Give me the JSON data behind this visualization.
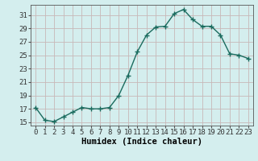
{
  "x": [
    0,
    1,
    2,
    3,
    4,
    5,
    6,
    7,
    8,
    9,
    10,
    11,
    12,
    13,
    14,
    15,
    16,
    17,
    18,
    19,
    20,
    21,
    22,
    23
  ],
  "y": [
    17.2,
    15.3,
    15.1,
    15.8,
    16.5,
    17.2,
    17.0,
    17.0,
    17.2,
    19.0,
    22.0,
    25.5,
    28.0,
    29.2,
    29.3,
    31.2,
    31.8,
    30.3,
    29.3,
    29.3,
    28.0,
    25.2,
    25.0,
    24.5
  ],
  "line_color": "#1a6b5e",
  "marker": "+",
  "marker_size": 4,
  "xlabel": "Humidex (Indice chaleur)",
  "xlim": [
    -0.5,
    23.5
  ],
  "ylim": [
    14.5,
    32.5
  ],
  "yticks": [
    15,
    17,
    19,
    21,
    23,
    25,
    27,
    29,
    31
  ],
  "xticks": [
    0,
    1,
    2,
    3,
    4,
    5,
    6,
    7,
    8,
    9,
    10,
    11,
    12,
    13,
    14,
    15,
    16,
    17,
    18,
    19,
    20,
    21,
    22,
    23
  ],
  "bg_color": "#d4eeee",
  "grid_color": "#c8b8b8",
  "line_width": 1.0,
  "tick_font_size": 6.5,
  "xlabel_font_size": 7.5
}
